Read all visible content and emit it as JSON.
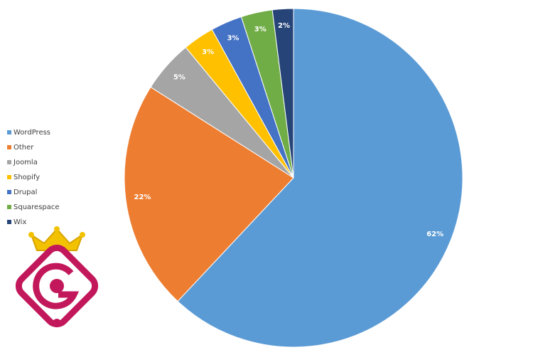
{
  "chart_data": {
    "type": "pie",
    "categories": [
      "WordPress",
      "Other",
      "Joomla",
      "Shopify",
      "Drupal",
      "Squarespace",
      "Wix"
    ],
    "values": [
      62,
      22,
      5,
      3,
      3,
      3,
      2
    ],
    "value_labels": [
      "62%",
      "22%",
      "5%",
      "3%",
      "3%",
      "3%",
      "2%"
    ],
    "colors": [
      "#5b9bd5",
      "#ed7d31",
      "#a5a5a5",
      "#ffc000",
      "#4472c4",
      "#70ad47",
      "#264478"
    ],
    "legend": "left"
  }
}
